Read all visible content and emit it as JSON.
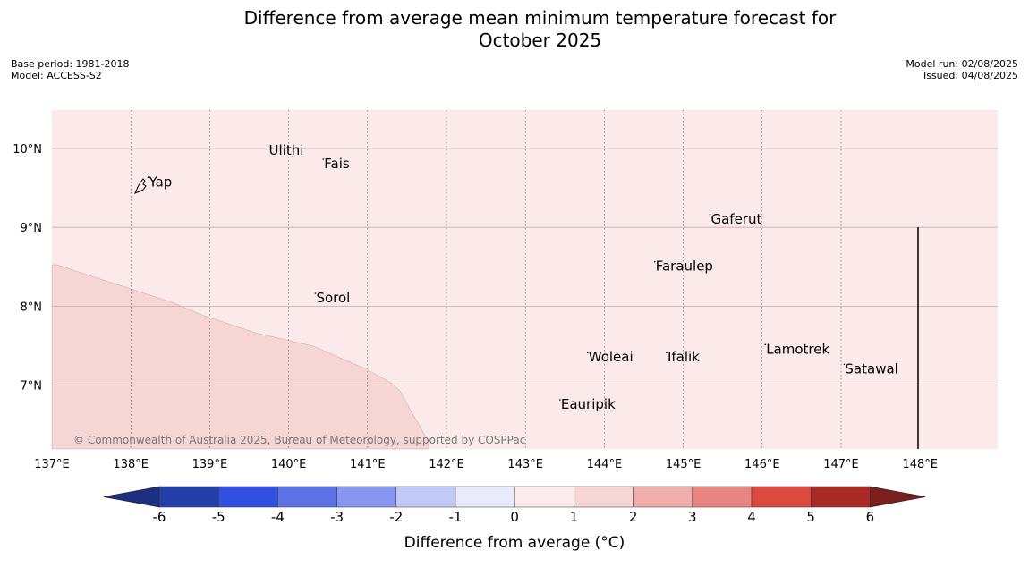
{
  "title_line1": "Difference from average mean minimum temperature forecast for",
  "title_line2": "October 2025",
  "meta_left": [
    "Base period: 1981-2018",
    "Model: ACCESS-S2"
  ],
  "meta_right": [
    "Model run: 02/08/2025",
    "Issued: 04/08/2025"
  ],
  "map": {
    "lon_ticks": [
      "137°E",
      "138°E",
      "139°E",
      "140°E",
      "141°E",
      "142°E",
      "143°E",
      "144°E",
      "145°E",
      "146°E",
      "147°E",
      "148°E"
    ],
    "lat_ticks": [
      "10°N",
      "9°N",
      "8°N",
      "7°N"
    ],
    "places": [
      {
        "name": "Yap",
        "lon": 138.23,
        "lat": 9.52
      },
      {
        "name": "Ulithi",
        "lon": 139.75,
        "lat": 9.92
      },
      {
        "name": "Fais",
        "lon": 140.45,
        "lat": 9.75
      },
      {
        "name": "Gaferut",
        "lon": 145.35,
        "lat": 9.05
      },
      {
        "name": "Faraulep",
        "lon": 144.65,
        "lat": 8.45
      },
      {
        "name": "Sorol",
        "lon": 140.35,
        "lat": 8.05
      },
      {
        "name": "Lamotrek",
        "lon": 146.05,
        "lat": 7.4
      },
      {
        "name": "Satawal",
        "lon": 147.05,
        "lat": 7.15
      },
      {
        "name": "Woleai",
        "lon": 143.8,
        "lat": 7.3
      },
      {
        "name": "Ifalik",
        "lon": 144.8,
        "lat": 7.3
      },
      {
        "name": "Eauripik",
        "lon": 143.45,
        "lat": 6.7
      }
    ],
    "background_anomaly_range": "0 to 1",
    "region_anomaly_range": "1 to 2",
    "copyright": "© Commonwealth of Australia 2025, Bureau of Meteorology, supported by COSPPac"
  },
  "colorbar": {
    "title": "Difference from average (°C)",
    "ticks": [
      "-6",
      "-5",
      "-4",
      "-3",
      "-2",
      "-1",
      "0",
      "1",
      "2",
      "3",
      "4",
      "5",
      "6"
    ],
    "colors": [
      "#233fa9",
      "#3150e0",
      "#5c73e6",
      "#8796ee",
      "#c1c9f6",
      "#e8ebfc",
      "#fcebeb",
      "#f5d6d5",
      "#efaeab",
      "#e98580",
      "#db4a3f",
      "#a82c25"
    ],
    "low_extend_color": "#1c2f80",
    "high_extend_color": "#7a1f1b"
  }
}
